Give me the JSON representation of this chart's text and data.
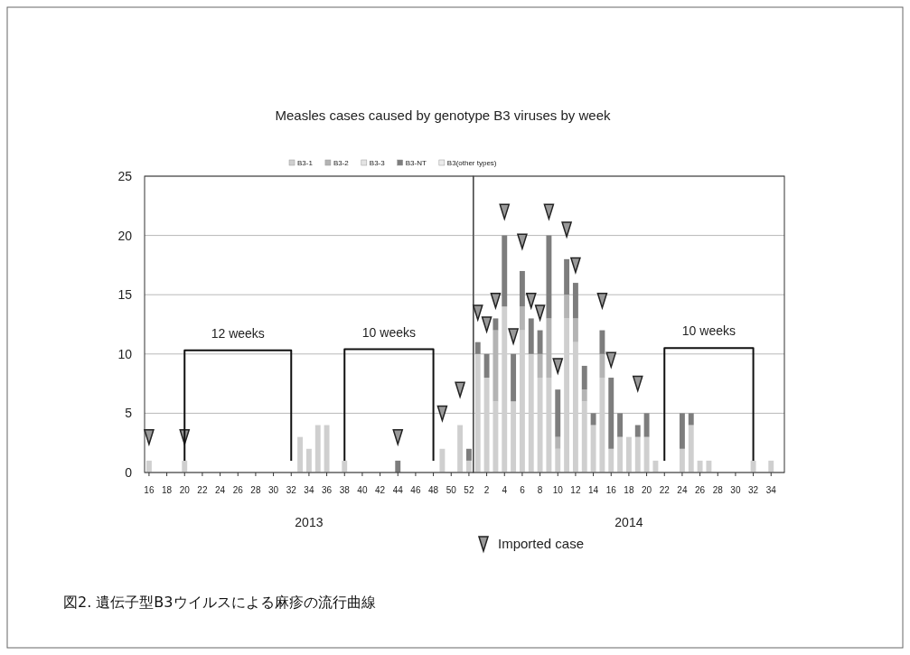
{
  "chart_data": [
    {
      "type": "bar",
      "title": "Measles cases caused by genotype B3 viruses by week",
      "xlabel": "2013",
      "stacked": true,
      "grid": "y",
      "legend": "top",
      "x": [
        16,
        17,
        18,
        19,
        20,
        21,
        22,
        23,
        24,
        25,
        26,
        27,
        28,
        29,
        30,
        31,
        32,
        33,
        34,
        35,
        36,
        37,
        38,
        39,
        40,
        41,
        42,
        43,
        44,
        45,
        46,
        47,
        48,
        49,
        50,
        51,
        52
      ],
      "xlim": [
        15.5,
        52.5
      ],
      "xticks": [
        16,
        18,
        20,
        22,
        24,
        26,
        28,
        30,
        32,
        34,
        36,
        38,
        40,
        42,
        44,
        46,
        48,
        50,
        52
      ],
      "ylim": [
        0,
        25
      ],
      "yticks": [
        0,
        5,
        10,
        15,
        20,
        25
      ],
      "series": [
        {
          "name": "B3-1",
          "color": "#cfcfcf",
          "values": [
            1,
            0,
            0,
            0,
            1,
            0,
            0,
            0,
            0,
            0,
            0,
            0,
            0,
            0,
            0,
            0,
            0,
            3,
            2,
            4,
            4,
            0,
            1,
            0,
            0,
            0,
            0,
            0,
            0,
            0,
            0,
            0,
            0,
            2,
            0,
            4,
            1
          ]
        },
        {
          "name": "B3-2",
          "color": "#b4b4b4",
          "values": [
            0,
            0,
            0,
            0,
            0,
            0,
            0,
            0,
            0,
            0,
            0,
            0,
            0,
            0,
            0,
            0,
            0,
            0,
            0,
            0,
            0,
            0,
            0,
            0,
            0,
            0,
            0,
            0,
            0,
            0,
            0,
            0,
            0,
            0,
            0,
            0,
            0
          ]
        },
        {
          "name": "B3-3",
          "color": "#e4e4e4",
          "values": [
            0,
            0,
            0,
            0,
            0,
            0,
            0,
            0,
            0,
            0,
            0,
            0,
            0,
            0,
            0,
            0,
            0,
            0,
            0,
            0,
            0,
            0,
            0,
            0,
            0,
            0,
            0,
            0,
            0,
            0,
            0,
            0,
            0,
            0,
            0,
            0,
            0
          ]
        },
        {
          "name": "B3-NT",
          "color": "#7d7d7d",
          "values": [
            0,
            0,
            0,
            0,
            0,
            0,
            0,
            0,
            0,
            0,
            0,
            0,
            0,
            0,
            0,
            0,
            0,
            0,
            0,
            0,
            0,
            0,
            0,
            0,
            0,
            0,
            0,
            0,
            1,
            0,
            0,
            0,
            0,
            0,
            0,
            0,
            1
          ]
        },
        {
          "name": "B3(other types)",
          "color": "#ececec",
          "values": [
            0,
            0,
            0,
            0,
            0,
            0,
            0,
            0,
            0,
            0,
            0,
            0,
            0,
            0,
            0,
            0,
            0,
            0,
            0,
            0,
            0,
            0,
            0,
            0,
            0,
            0,
            0,
            0,
            0,
            0,
            0,
            0,
            0,
            0,
            0,
            0,
            0
          ]
        },
        {
          "type": "scatter",
          "marker": "triangle",
          "color": "#999999",
          "x": [
            16,
            20,
            44,
            49,
            51
          ],
          "values": [
            3,
            3,
            3,
            5,
            7
          ]
        },
        {
          "name": "12 weeks",
          "type": "line",
          "color": "#111111",
          "x": [
            20,
            20,
            32,
            32
          ],
          "values": [
            1,
            10.3,
            10.3,
            1
          ]
        },
        {
          "name": "10 weeks",
          "type": "line",
          "color": "#111111",
          "x": [
            38,
            38,
            48,
            48
          ],
          "values": [
            1,
            10.4,
            10.4,
            1
          ]
        }
      ],
      "annotations": [
        "図2. 遺伝子型B3ウイルスによる麻疹の流行曲線"
      ]
    },
    {
      "type": "bar",
      "xlabel": "2014",
      "stacked": true,
      "grid": "y",
      "legend": "bottom left",
      "tick_labels": "x",
      "x": [
        1,
        2,
        3,
        4,
        5,
        6,
        7,
        8,
        9,
        10,
        11,
        12,
        13,
        14,
        15,
        16,
        17,
        18,
        19,
        20,
        21,
        22,
        23,
        24,
        25,
        26,
        27,
        28,
        29,
        30,
        31,
        32,
        33,
        34,
        35
      ],
      "xlim": [
        0.5,
        35.5
      ],
      "xticks": [
        2,
        4,
        6,
        8,
        10,
        12,
        14,
        16,
        18,
        20,
        22,
        24,
        26,
        28,
        30,
        32,
        34
      ],
      "ylim": [
        0,
        25
      ],
      "yticks": [
        0,
        5,
        10,
        15,
        20,
        25
      ],
      "series": [
        {
          "color": "#cfcfcf",
          "values": [
            10,
            8,
            6,
            14,
            6,
            12,
            10,
            8,
            8,
            2,
            13,
            11,
            6,
            4,
            8,
            2,
            3,
            3,
            3,
            3,
            1,
            0,
            0,
            2,
            4,
            1,
            1,
            0,
            0,
            0,
            0,
            1,
            0,
            1,
            0
          ]
        },
        {
          "color": "#b4b4b4",
          "values": [
            0,
            0,
            6,
            0,
            0,
            2,
            0,
            2,
            5,
            1,
            2,
            2,
            1,
            0,
            2,
            0,
            0,
            0,
            0,
            0,
            0,
            0,
            0,
            0,
            0,
            0,
            0,
            0,
            0,
            0,
            0,
            0,
            0,
            0,
            0
          ]
        },
        {
          "color": "#e4e4e4",
          "values": [
            0,
            0,
            0,
            0,
            0,
            0,
            0,
            0,
            0,
            0,
            0,
            0,
            0,
            0,
            0,
            0,
            0,
            0,
            0,
            0,
            0,
            0,
            0,
            0,
            0,
            0,
            0,
            0,
            0,
            0,
            0,
            0,
            0,
            0,
            0
          ]
        },
        {
          "color": "#7d7d7d",
          "values": [
            1,
            2,
            1,
            6,
            4,
            3,
            3,
            2,
            7,
            4,
            3,
            3,
            2,
            1,
            2,
            6,
            2,
            0,
            1,
            2,
            0,
            0,
            0,
            3,
            1,
            0,
            0,
            0,
            0,
            0,
            0,
            0,
            0,
            0,
            0
          ]
        },
        {
          "color": "#ececec",
          "values": [
            0,
            0,
            0,
            0,
            0,
            0,
            0,
            0,
            0,
            0,
            0,
            0,
            0,
            0,
            0,
            0,
            0,
            0,
            0,
            0,
            0,
            0,
            0,
            0,
            0,
            0,
            0,
            0,
            0,
            0,
            0,
            0,
            0,
            0,
            0
          ]
        },
        {
          "name": "Imported case",
          "type": "scatter",
          "marker": "triangle",
          "color": "#999999",
          "x": [
            1,
            2,
            3,
            4,
            5,
            6,
            7,
            8,
            9,
            10,
            11,
            12,
            15,
            16,
            19
          ],
          "values": [
            13.5,
            12.5,
            14.5,
            22,
            11.5,
            19.5,
            14.5,
            13.5,
            22,
            9,
            20.5,
            17.5,
            14.5,
            9.5,
            7.5
          ]
        },
        {
          "name": "10 weeks",
          "type": "line",
          "color": "#111111",
          "x": [
            22,
            22,
            32,
            32
          ],
          "values": [
            1,
            10.5,
            10.5,
            1
          ]
        }
      ]
    }
  ]
}
